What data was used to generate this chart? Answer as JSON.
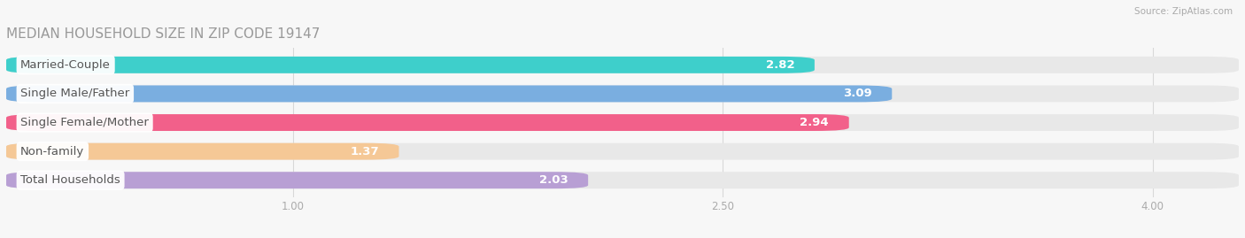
{
  "title": "MEDIAN HOUSEHOLD SIZE IN ZIP CODE 19147",
  "source": "Source: ZipAtlas.com",
  "categories": [
    "Married-Couple",
    "Single Male/Father",
    "Single Female/Mother",
    "Non-family",
    "Total Households"
  ],
  "values": [
    2.82,
    3.09,
    2.94,
    1.37,
    2.03
  ],
  "bar_colors": [
    "#3ecfcb",
    "#7aaee0",
    "#f2608a",
    "#f5c896",
    "#b89fd4"
  ],
  "background_color": "#f7f7f7",
  "bar_bg_color": "#e8e8e8",
  "xlim_min": 0.0,
  "xlim_max": 4.3,
  "data_min": 1.0,
  "xticks": [
    1.0,
    2.5,
    4.0
  ],
  "xticklabels": [
    "1.00",
    "2.50",
    "4.00"
  ],
  "title_fontsize": 11,
  "bar_height": 0.58,
  "value_fontsize": 9.5,
  "label_fontsize": 9.5,
  "value_color": "#ffffff",
  "label_color": "#555555"
}
